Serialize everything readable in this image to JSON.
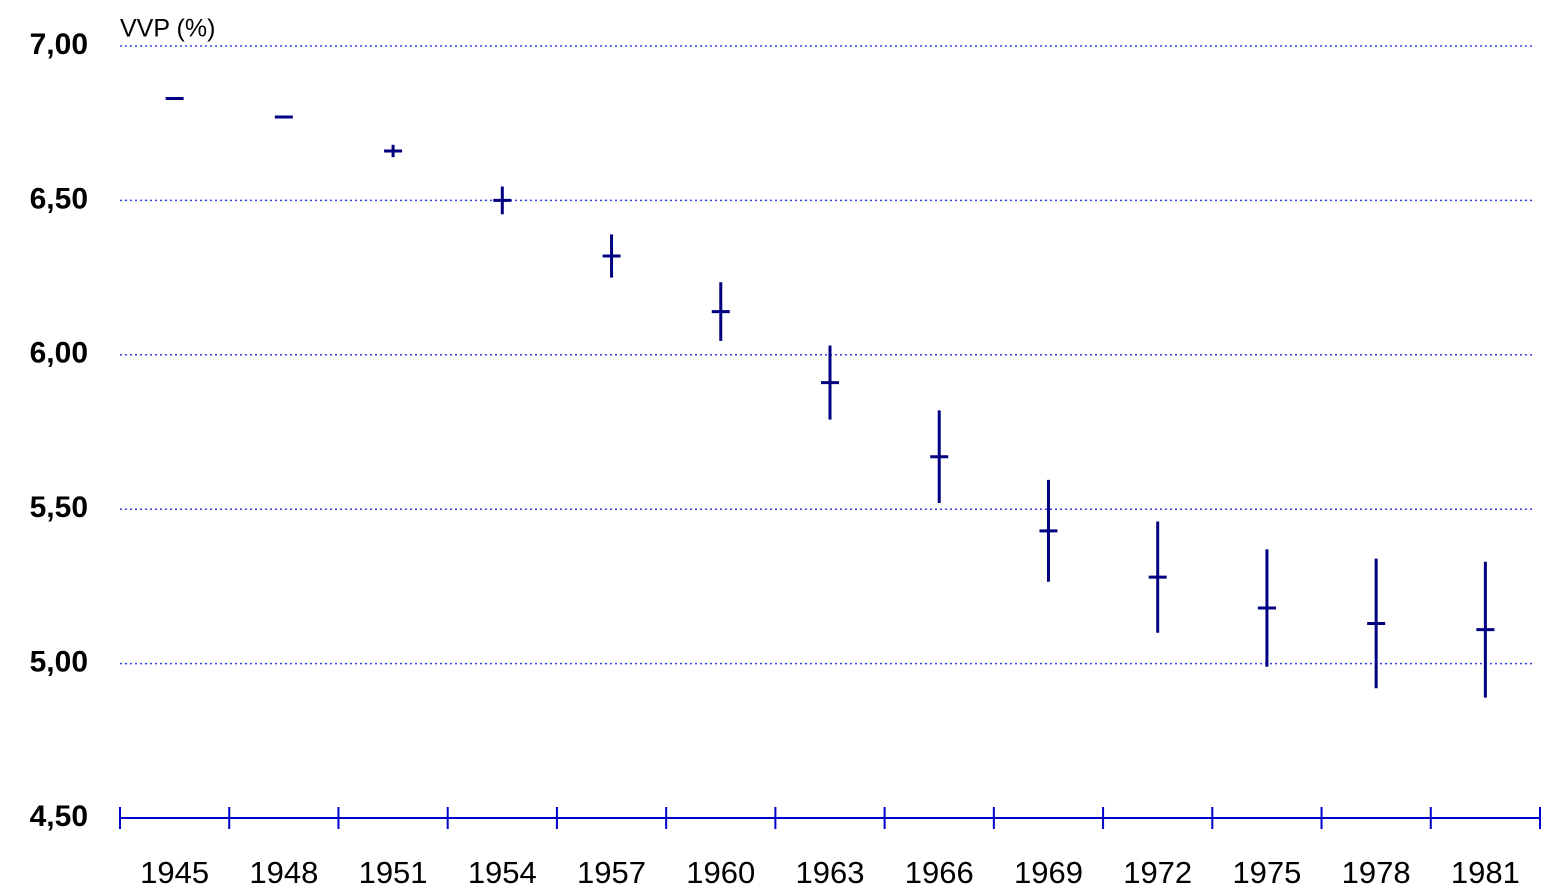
{
  "chart_data": {
    "type": "errorbar",
    "y_label": "VVP (%)",
    "categories": [
      "1945",
      "1948",
      "1951",
      "1954",
      "1957",
      "1960",
      "1963",
      "1966",
      "1969",
      "1972",
      "1975",
      "1978",
      "1981"
    ],
    "values": [
      6.83,
      6.77,
      6.66,
      6.5,
      6.32,
      6.14,
      5.91,
      5.67,
      5.43,
      5.28,
      5.18,
      5.13,
      5.11
    ],
    "errors": [
      0,
      0,
      0.02,
      0.045,
      0.07,
      0.095,
      0.12,
      0.15,
      0.165,
      0.18,
      0.19,
      0.21,
      0.22
    ],
    "color": "#000080",
    "grid_color": "#3344ee",
    "axis_color": "#0000cc",
    "ylim": [
      4.5,
      7
    ],
    "yticks": [
      {
        "value": 4.5,
        "label": "4,50"
      },
      {
        "value": 5,
        "label": "5,00"
      },
      {
        "value": 5.5,
        "label": "5,50"
      },
      {
        "value": 6,
        "label": "6,00"
      },
      {
        "value": 6.5,
        "label": "6,50"
      },
      {
        "value": 7,
        "label": "7,00"
      }
    ],
    "grid": true
  }
}
